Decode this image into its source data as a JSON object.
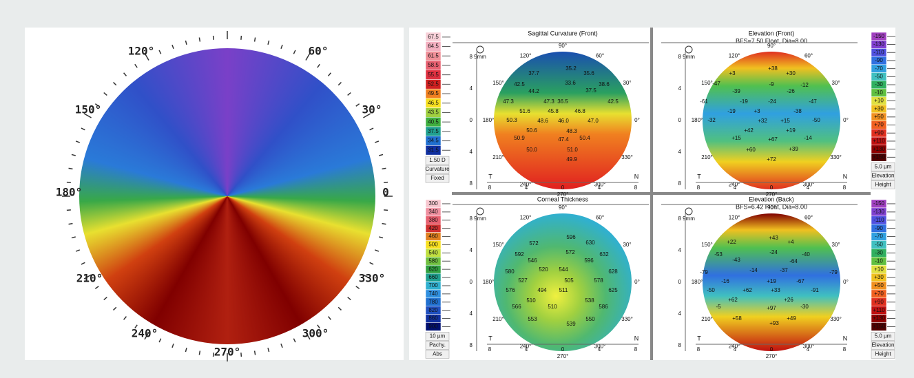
{
  "left_map": {
    "angle_labels": [
      "120°",
      "60°",
      "150°",
      "30°",
      "180°",
      "0",
      "210°",
      "330°",
      "240°",
      "300°",
      "270°"
    ]
  },
  "panel_common": {
    "zoom": "9mm",
    "y_ticks": [
      "8",
      "4",
      "0",
      "4",
      "8"
    ],
    "x_ticks": [
      "8",
      "4",
      "0",
      "4",
      "8"
    ],
    "left_label": "T",
    "right_label": "N",
    "angle_labels": [
      "90°",
      "60°",
      "30°",
      "0°",
      "330°",
      "300°",
      "270°",
      "240°",
      "210°",
      "180°",
      "150°",
      "120°"
    ]
  },
  "panels": [
    {
      "title": "Sagittal Curvature (Front)",
      "map_values": [
        "35.2",
        "35.6",
        "37.7",
        "33.6",
        "38.6",
        "42.5",
        "44.2",
        "37.5",
        "47.3",
        "47.3",
        "36.5",
        "42.5",
        "51.6",
        "45.8",
        "46.8",
        "50.3",
        "48.6",
        "46.0",
        "47.0",
        "50.6",
        "48.3",
        "50.9",
        "47.4",
        "50.4",
        "50.0",
        "51.0",
        "49.9"
      ]
    },
    {
      "title": "Elevation (Front)",
      "subtitle": "BFS=7.50 Float, Dia=8.00",
      "map_values": [
        "+38",
        "+30",
        "+3",
        "-9",
        "-12",
        "-47",
        "-39",
        "-26",
        "-61",
        "-19",
        "-24",
        "-47",
        "-19",
        "+3",
        "-38",
        "-32",
        "+32",
        "+15",
        "-50",
        "+42",
        "+19",
        "+15",
        "+67",
        "-14",
        "+60",
        "+39",
        "+72"
      ]
    },
    {
      "title": "Corneal Thickness",
      "map_values": [
        "596",
        "630",
        "572",
        "572",
        "632",
        "592",
        "546",
        "596",
        "520",
        "544",
        "580",
        "628",
        "527",
        "505",
        "578",
        "576",
        "494",
        "511",
        "625",
        "510",
        "538",
        "566",
        "510",
        "586",
        "553",
        "550",
        "539"
      ]
    },
    {
      "title": "Elevation (Back)",
      "subtitle": "BFS=6.42 Float, Dia=8.00",
      "map_values": [
        "+43",
        "+22",
        "+4",
        "-53",
        "-24",
        "-40",
        "-43",
        "-64",
        "-79",
        "-14",
        "-37",
        "-79",
        "-16",
        "+19",
        "-67",
        "-50",
        "+62",
        "+33",
        "-91",
        "+62",
        "+26",
        "-5",
        "+97",
        "-30",
        "+58",
        "+93",
        "+49"
      ]
    }
  ],
  "scales": [
    {
      "entries": [
        "67.5",
        "64.5",
        "61.5",
        "58.5",
        "55.5",
        "52.5",
        "49.5",
        "46.5",
        "43.5",
        "40.5",
        "37.5",
        "34.5",
        "31.5"
      ],
      "step": "1.50 D",
      "name": "Curvature",
      "mode": "Fixed"
    },
    {
      "entries": [
        "-150",
        "-130",
        "-110",
        "-90",
        "-70",
        "-50",
        "-30",
        "-10",
        "+10",
        "+30",
        "+50",
        "+70",
        "+90",
        "+110",
        "+130",
        "+150"
      ],
      "step": "5.0 µm",
      "name": "Elevation",
      "mode": "Height"
    },
    {
      "entries": [
        "300",
        "340",
        "380",
        "420",
        "460",
        "500",
        "540",
        "580",
        "620",
        "660",
        "700",
        "740",
        "780",
        "820",
        "860",
        "900"
      ],
      "step": "10 µm",
      "name": "Pachy.",
      "mode": "Abs"
    },
    {
      "entries": [
        "-150",
        "-130",
        "-110",
        "-90",
        "-70",
        "-50",
        "-30",
        "-10",
        "+10",
        "+30",
        "+50",
        "+70",
        "+90",
        "+110",
        "+130",
        "+150"
      ],
      "step": "5.0 µm",
      "name": "Elevation",
      "mode": "Height"
    }
  ]
}
